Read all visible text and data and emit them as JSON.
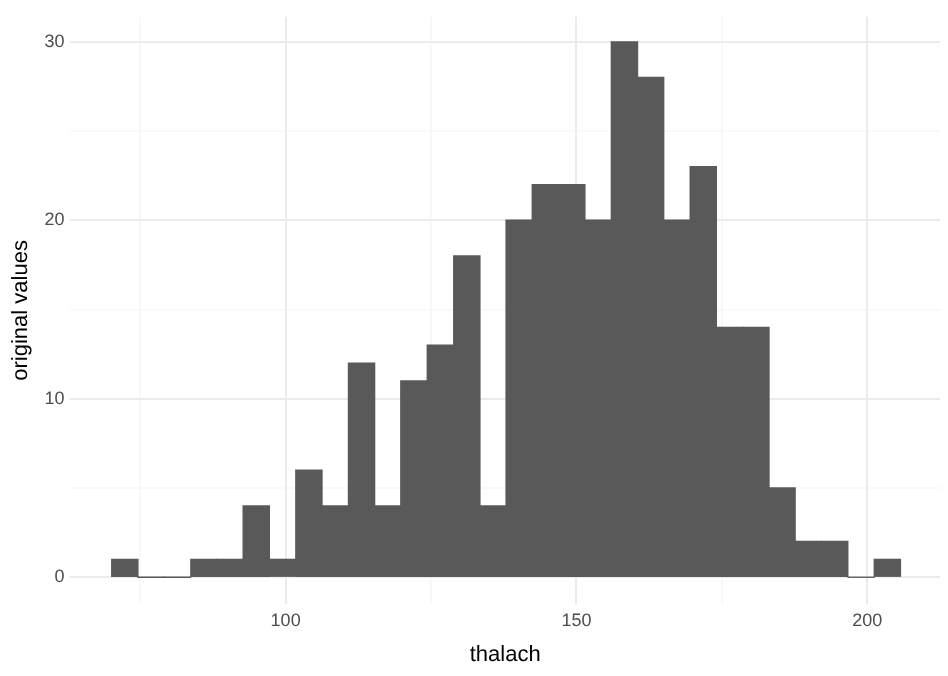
{
  "chart_data": {
    "type": "histogram",
    "xlabel": "thalach",
    "ylabel": "original values",
    "color": "#595959",
    "bins": [
      70.1,
      74.6,
      79.1,
      83.7,
      88.2,
      92.7,
      97.2,
      101.7,
      106.3,
      110.8,
      115.3,
      119.8,
      124.3,
      128.9,
      133.4,
      137.9,
      142.4,
      146.9,
      151.5,
      156.0,
      160.5,
      165.0,
      169.5,
      174.1,
      178.6,
      183.1,
      187.6,
      192.1,
      196.7,
      201.2,
      205.7
    ],
    "values": [
      1,
      0,
      0,
      1,
      1,
      4,
      1,
      6,
      4,
      12,
      4,
      11,
      13,
      18,
      4,
      20,
      22,
      22,
      20,
      30,
      28,
      20,
      23,
      14,
      14,
      5,
      2,
      2,
      0,
      1
    ],
    "xlim": [
      63,
      212.5
    ],
    "xticks": [
      {
        "value": 75,
        "label": null
      },
      100,
      {
        "value": 125,
        "label": null
      },
      150,
      {
        "value": 175,
        "label": null
      },
      200
    ],
    "ylim": [
      -1.5,
      31.4
    ],
    "yticks": [
      0,
      {
        "value": 5,
        "label": null
      },
      10,
      {
        "value": 15,
        "label": null
      },
      20,
      {
        "value": 25,
        "label": null
      },
      30
    ],
    "grid": true
  }
}
